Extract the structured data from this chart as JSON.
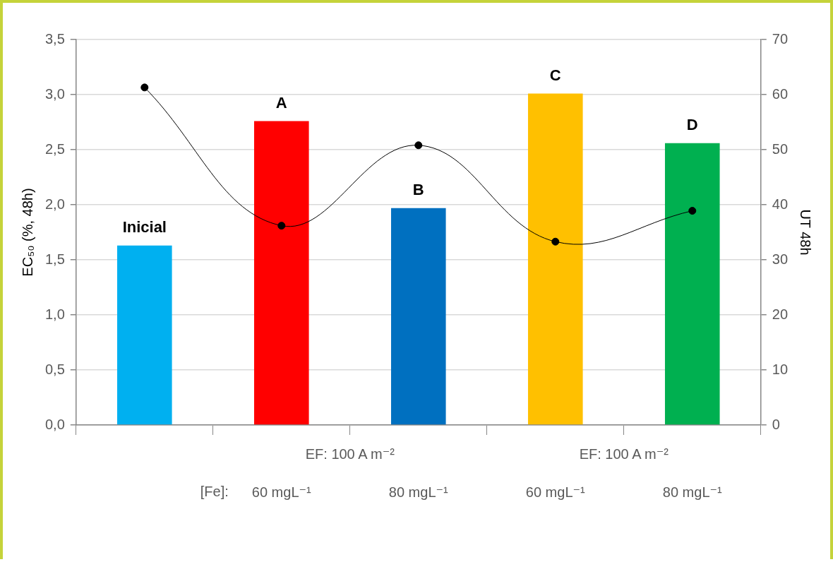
{
  "chart_data": {
    "type": "bar",
    "categories": [
      null,
      "60 mgL⁻¹",
      "80 mgL⁻¹",
      "60 mgL⁻¹",
      "80 mgL⁻¹"
    ],
    "series": [
      {
        "colors": [
          "#00b0f0",
          "#ff0000",
          "#0070c0",
          "#ffc000",
          "#00b050"
        ],
        "values": [
          1.63,
          2.76,
          1.97,
          3.01,
          2.56
        ],
        "value_labels": [
          "Inicial",
          "A",
          "B",
          "C",
          "D"
        ]
      },
      {
        "type": "line",
        "axis": "y2",
        "color": "#000000",
        "values": [
          61.3,
          36.2,
          50.8,
          33.3,
          38.9
        ]
      }
    ],
    "ylabel": "EC₅₀ (%, 48h)",
    "y2label": "UT 48h",
    "ylim": [
      0,
      3.5
    ],
    "yticks": [
      {
        "value": 0,
        "label": "0,0"
      },
      {
        "value": 0.5,
        "label": "0,5"
      },
      {
        "value": 1,
        "label": "1,0"
      },
      {
        "value": 1.5,
        "label": "1,5"
      },
      {
        "value": 2,
        "label": "2,0"
      },
      {
        "value": 2.5,
        "label": "2,5"
      },
      {
        "value": 3,
        "label": "3,0"
      },
      {
        "value": 3.5,
        "label": "3,5"
      }
    ],
    "y2lim": [
      0,
      70
    ],
    "y2ticks": [
      0,
      10,
      20,
      30,
      40,
      50,
      60,
      70
    ],
    "grid": "y",
    "marker": "circle",
    "annotations": [
      "EF: 100 A m⁻²",
      "EF: 100 A m⁻²",
      "[Fe]:"
    ]
  }
}
